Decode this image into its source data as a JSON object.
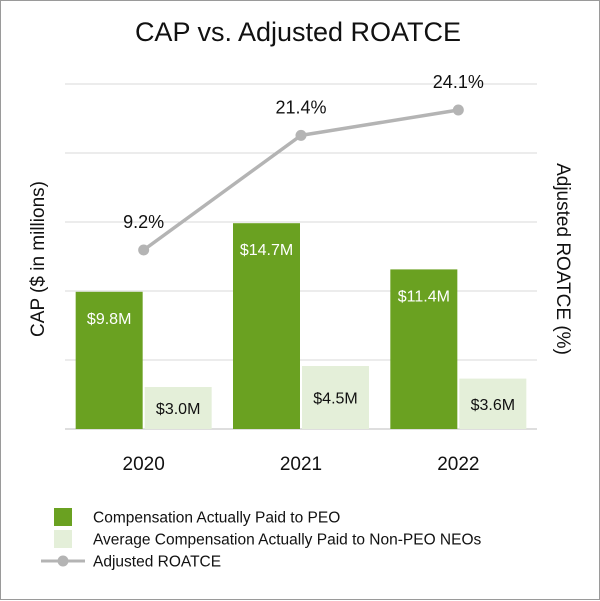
{
  "chart_data": {
    "type": "bar",
    "title": "CAP vs. Adjusted ROATCE",
    "ylabel": "CAP ($ in millions)",
    "y2label": "Adjusted ROATCE (%)",
    "categories": [
      "2020",
      "2021",
      "2022"
    ],
    "ylim": [
      0,
      20
    ],
    "y2lim": [
      0,
      30
    ],
    "grid": true,
    "legend_position": "bottom",
    "series": [
      {
        "name": "Compensation Actually Paid to PEO",
        "kind": "bar",
        "axis": "left",
        "color": "#6aa121",
        "label_color": "#ffffff",
        "values": [
          9.8,
          14.7,
          11.4
        ],
        "labels": [
          "$9.8M",
          "$14.7M",
          "$11.4M"
        ]
      },
      {
        "name": "Average Compensation Actually Paid to Non-PEO NEOs",
        "kind": "bar",
        "axis": "left",
        "color": "#e4efd9",
        "label_color": "#111111",
        "values": [
          3.0,
          4.5,
          3.6
        ],
        "labels": [
          "$3.0M",
          "$4.5M",
          "$3.6M"
        ]
      },
      {
        "name": "Adjusted ROATCE",
        "kind": "line",
        "axis": "right",
        "color": "#b4b4b4",
        "values": [
          9.2,
          21.4,
          24.1
        ],
        "labels": [
          "9.2%",
          "21.4%",
          "24.1%"
        ]
      }
    ]
  }
}
